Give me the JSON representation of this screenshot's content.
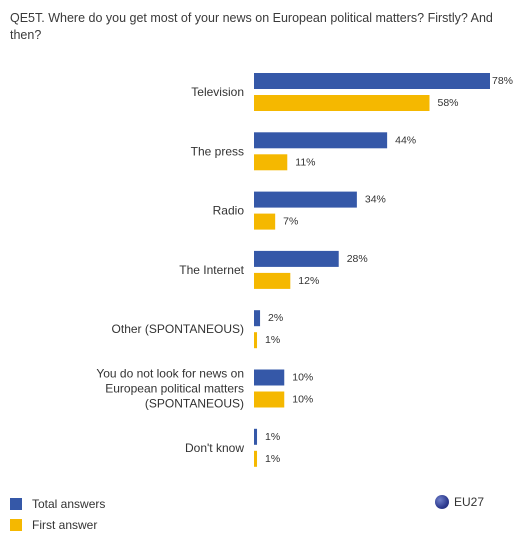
{
  "question": "QE5T. Where do you get most of your news on European political matters? Firstly? And then?",
  "chart_data": {
    "type": "bar",
    "orientation": "horizontal",
    "categories": [
      [
        "Television"
      ],
      [
        "The press"
      ],
      [
        "Radio"
      ],
      [
        "The Internet"
      ],
      [
        "Other (SPONTANEOUS)"
      ],
      [
        "You do not look for news on",
        "European political matters",
        "(SPONTANEOUS)"
      ],
      [
        "Don't know"
      ]
    ],
    "series": [
      {
        "name": "Total answers",
        "values": [
          78,
          44,
          34,
          28,
          2,
          10,
          1
        ],
        "labels": [
          "78%",
          "44%",
          "34%",
          "28%",
          "2%",
          "10%",
          "1%"
        ],
        "color": "#3558a8"
      },
      {
        "name": "First answer",
        "values": [
          58,
          11,
          7,
          12,
          1,
          10,
          1
        ],
        "labels": [
          "58%",
          "11%",
          "7%",
          "12%",
          "1%",
          "10%",
          "1%"
        ],
        "color": "#f5b800"
      }
    ],
    "xlim": [
      0,
      100
    ],
    "grid": false,
    "legend": "bottom-left"
  },
  "legend": {
    "total_label": "Total answers",
    "first_label": "First answer",
    "region_label": "EU27"
  }
}
